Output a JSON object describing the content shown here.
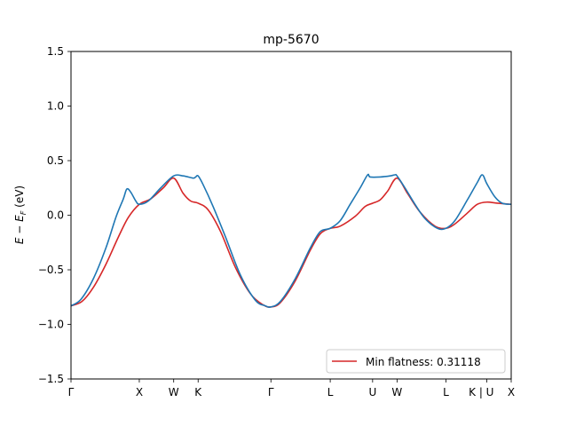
{
  "chart_data": {
    "type": "line",
    "title": "mp-5670",
    "ylabel": "E − E_F (eV)",
    "ylabel_main": "E − E",
    "ylabel_sub": "F",
    "ylabel_unit": " (eV)",
    "xlabel": "",
    "ylim": [
      -1.5,
      1.5
    ],
    "xlim": [
      0,
      8.83
    ],
    "y_ticks": [
      -1.5,
      -1.0,
      -0.5,
      0.0,
      0.5,
      1.0,
      1.5
    ],
    "y_tick_labels": [
      "−1.5",
      "−1.0",
      "−0.5",
      "0.0",
      "0.5",
      "1.0",
      "1.5"
    ],
    "x_ticks": [
      {
        "label": "Γ",
        "x": 0.0
      },
      {
        "label": "X",
        "x": 1.37
      },
      {
        "label": "W",
        "x": 2.06
      },
      {
        "label": "K",
        "x": 2.55
      },
      {
        "label": "Γ",
        "x": 4.01
      },
      {
        "label": "L",
        "x": 5.2
      },
      {
        "label": "U",
        "x": 6.05
      },
      {
        "label": "W",
        "x": 6.54
      },
      {
        "label": "L",
        "x": 7.52
      },
      {
        "label": "K | U",
        "x": 8.34
      },
      {
        "label": "X",
        "x": 8.83
      }
    ],
    "legend": {
      "placement": "lower-right",
      "entries": [
        "Min flatness: 0.31118"
      ]
    },
    "series": [
      {
        "name": "Min flatness: 0.31118",
        "color": "#d62728",
        "points": [
          [
            0.0,
            -0.83
          ],
          [
            0.22,
            -0.79
          ],
          [
            0.45,
            -0.66
          ],
          [
            0.7,
            -0.45
          ],
          [
            0.95,
            -0.2
          ],
          [
            1.15,
            -0.02
          ],
          [
            1.37,
            0.1
          ],
          [
            1.6,
            0.15
          ],
          [
            1.85,
            0.25
          ],
          [
            2.06,
            0.34
          ],
          [
            2.25,
            0.2
          ],
          [
            2.4,
            0.13
          ],
          [
            2.55,
            0.11
          ],
          [
            2.75,
            0.05
          ],
          [
            3.0,
            -0.15
          ],
          [
            3.3,
            -0.48
          ],
          [
            3.6,
            -0.72
          ],
          [
            3.85,
            -0.82
          ],
          [
            4.01,
            -0.84
          ],
          [
            4.2,
            -0.8
          ],
          [
            4.5,
            -0.6
          ],
          [
            4.8,
            -0.32
          ],
          [
            5.0,
            -0.17
          ],
          [
            5.2,
            -0.12
          ],
          [
            5.4,
            -0.1
          ],
          [
            5.7,
            -0.01
          ],
          [
            5.9,
            0.08
          ],
          [
            6.05,
            0.11
          ],
          [
            6.2,
            0.14
          ],
          [
            6.35,
            0.22
          ],
          [
            6.54,
            0.34
          ],
          [
            6.75,
            0.2
          ],
          [
            7.0,
            0.03
          ],
          [
            7.3,
            -0.1
          ],
          [
            7.52,
            -0.12
          ],
          [
            7.7,
            -0.08
          ],
          [
            7.95,
            0.02
          ],
          [
            8.15,
            0.1
          ],
          [
            8.34,
            0.12
          ],
          [
            8.55,
            0.11
          ],
          [
            8.83,
            0.1
          ]
        ]
      },
      {
        "name": "",
        "color": "#1f77b4",
        "points": [
          [
            0.0,
            -0.83
          ],
          [
            0.2,
            -0.77
          ],
          [
            0.45,
            -0.58
          ],
          [
            0.7,
            -0.3
          ],
          [
            0.9,
            -0.02
          ],
          [
            1.05,
            0.15
          ],
          [
            1.12,
            0.24
          ],
          [
            1.2,
            0.21
          ],
          [
            1.3,
            0.13
          ],
          [
            1.37,
            0.1
          ],
          [
            1.55,
            0.13
          ],
          [
            1.8,
            0.25
          ],
          [
            2.06,
            0.36
          ],
          [
            2.25,
            0.36
          ],
          [
            2.45,
            0.34
          ],
          [
            2.5,
            0.35
          ],
          [
            2.55,
            0.36
          ],
          [
            2.65,
            0.28
          ],
          [
            2.85,
            0.08
          ],
          [
            3.1,
            -0.2
          ],
          [
            3.4,
            -0.55
          ],
          [
            3.7,
            -0.78
          ],
          [
            3.9,
            -0.83
          ],
          [
            4.01,
            -0.84
          ],
          [
            4.2,
            -0.79
          ],
          [
            4.5,
            -0.58
          ],
          [
            4.8,
            -0.3
          ],
          [
            5.0,
            -0.15
          ],
          [
            5.2,
            -0.12
          ],
          [
            5.4,
            -0.05
          ],
          [
            5.6,
            0.1
          ],
          [
            5.8,
            0.25
          ],
          [
            5.95,
            0.37
          ],
          [
            6.0,
            0.35
          ],
          [
            6.2,
            0.35
          ],
          [
            6.4,
            0.36
          ],
          [
            6.5,
            0.37
          ],
          [
            6.54,
            0.36
          ],
          [
            6.7,
            0.25
          ],
          [
            6.9,
            0.1
          ],
          [
            7.1,
            -0.03
          ],
          [
            7.35,
            -0.12
          ],
          [
            7.52,
            -0.12
          ],
          [
            7.7,
            -0.05
          ],
          [
            7.95,
            0.14
          ],
          [
            8.15,
            0.3
          ],
          [
            8.25,
            0.37
          ],
          [
            8.34,
            0.29
          ],
          [
            8.5,
            0.17
          ],
          [
            8.65,
            0.11
          ],
          [
            8.83,
            0.1
          ]
        ]
      }
    ]
  }
}
